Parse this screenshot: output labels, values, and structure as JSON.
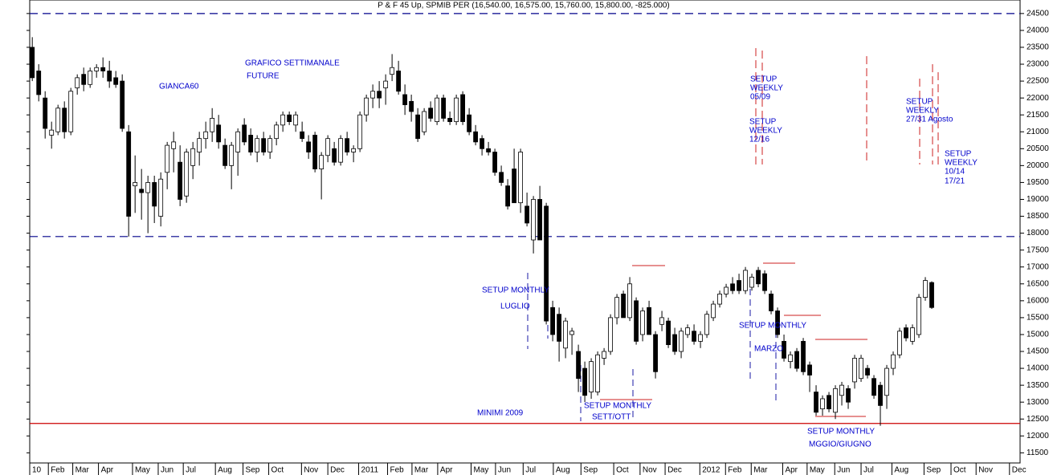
{
  "chart_data": {
    "type": "candlestick",
    "title": "P & F 45 Up, SPMIB PER (16,540.00, 16,575.00, 15,760.00, 15,800.00, -825.000)",
    "open": [
      23500,
      22800,
      22000,
      20900,
      21000,
      21700,
      21000,
      22300,
      22700,
      22400,
      22800,
      22900,
      22800,
      22600,
      22500,
      21000,
      19400,
      19300,
      19200,
      19500,
      18500,
      19800,
      20500,
      20100,
      19100,
      20000,
      20400,
      20800,
      21000,
      21200,
      20600,
      20000,
      20400,
      21200,
      20900,
      20400,
      20800,
      20400,
      20800,
      21200,
      21500,
      21200,
      21000,
      20700,
      20900,
      19900,
      20300,
      20500,
      20100,
      20800,
      20400,
      20500,
      21500,
      22000,
      22200,
      22300,
      22700,
      22800,
      22100,
      21900,
      21500,
      21000,
      21700,
      21300,
      22000,
      21400,
      21300,
      22100,
      21500,
      21000,
      20800,
      20500,
      20400,
      19800,
      19400,
      19900,
      18900,
      18800,
      17800,
      19000,
      18800,
      15800,
      15600,
      14600,
      15000,
      14500,
      14000,
      13300,
      13300,
      14300,
      14500,
      15500,
      16200,
      15500,
      16000,
      15000,
      15800,
      15000,
      15300,
      15400,
      15000,
      14500,
      15000,
      15100,
      14800,
      15000,
      15500,
      15900,
      16200,
      16500,
      16600,
      16300,
      16400,
      16900,
      16800,
      16200,
      15700,
      14800,
      14200,
      14500,
      14800,
      14100,
      13300,
      12800,
      13200,
      12700,
      13200,
      13400,
      13600,
      13700,
      14000,
      13700,
      13500,
      13200,
      14000,
      14400,
      15200,
      14800,
      15000,
      16100,
      16540
    ],
    "high": [
      23800,
      23000,
      22200,
      21300,
      21800,
      21900,
      22300,
      22700,
      22900,
      22900,
      23000,
      23200,
      23100,
      22800,
      22700,
      21200,
      20300,
      19900,
      19700,
      19700,
      19800,
      20700,
      21000,
      20600,
      20500,
      20700,
      21000,
      21300,
      21700,
      21500,
      20800,
      20700,
      21100,
      21400,
      21100,
      20900,
      21000,
      20900,
      21300,
      21600,
      21600,
      21600,
      21300,
      20900,
      21000,
      20400,
      20900,
      20700,
      20900,
      21000,
      20600,
      21600,
      22100,
      22400,
      22500,
      22700,
      23300,
      23100,
      22400,
      22100,
      21700,
      21700,
      21900,
      22100,
      22100,
      21600,
      22100,
      22200,
      21700,
      21200,
      20900,
      20700,
      20500,
      20000,
      19600,
      20500,
      20500,
      19200,
      19100,
      19400,
      18900,
      16000,
      15800,
      15500,
      15200,
      14700,
      14200,
      14300,
      14500,
      14600,
      15600,
      16200,
      16300,
      16700,
      16100,
      15800,
      16000,
      15100,
      15700,
      15500,
      15200,
      15200,
      15300,
      15300,
      15100,
      15700,
      16000,
      16300,
      16500,
      16700,
      16800,
      17000,
      16800,
      17000,
      16900,
      16300,
      15800,
      15000,
      14500,
      14600,
      14900,
      14200,
      13500,
      13200,
      13300,
      13500,
      13600,
      13500,
      14400,
      14400,
      14100,
      13800,
      13600,
      14100,
      14500,
      15200,
      15300,
      15300,
      16200,
      16700,
      16575
    ],
    "low": [
      22500,
      21900,
      20800,
      20500,
      20900,
      20800,
      20900,
      22100,
      22200,
      22300,
      22600,
      22600,
      22300,
      22300,
      21000,
      17900,
      18600,
      18400,
      18000,
      18300,
      18200,
      19300,
      19800,
      18800,
      18900,
      19600,
      20000,
      20500,
      20700,
      20500,
      19900,
      19300,
      19700,
      20600,
      20300,
      20100,
      20300,
      20200,
      20600,
      21000,
      21200,
      21000,
      20700,
      20200,
      19800,
      19000,
      20100,
      20000,
      20000,
      20300,
      20100,
      20400,
      21300,
      21700,
      21700,
      21800,
      22500,
      22100,
      21500,
      21300,
      20700,
      20900,
      21300,
      21200,
      21300,
      21200,
      21200,
      21200,
      20900,
      20600,
      20300,
      20300,
      19700,
      19400,
      18700,
      18900,
      18600,
      18200,
      17400,
      17800,
      15300,
      14800,
      14200,
      14300,
      14400,
      13300,
      13000,
      13100,
      13200,
      14100,
      14400,
      15300,
      15500,
      15400,
      14700,
      14800,
      15000,
      13700,
      15100,
      14600,
      14400,
      14300,
      14900,
      14700,
      14600,
      14900,
      15400,
      15800,
      16100,
      16200,
      16200,
      16200,
      16300,
      16400,
      16200,
      15600,
      14900,
      14200,
      14000,
      13900,
      13800,
      13300,
      12600,
      12600,
      12700,
      12500,
      12900,
      12800,
      13400,
      13600,
      13700,
      13100,
      12300,
      12800,
      13800,
      14300,
      14800,
      14700,
      14900,
      16000,
      15760
    ],
    "close": [
      22600,
      22100,
      21100,
      21050,
      21700,
      21000,
      22200,
      22600,
      22400,
      22800,
      22900,
      22800,
      22500,
      22400,
      21100,
      18500,
      19500,
      19200,
      19500,
      18800,
      19600,
      20600,
      20700,
      19000,
      20400,
      20500,
      20800,
      21000,
      21400,
      20700,
      20000,
      20600,
      21000,
      20700,
      20400,
      20800,
      20400,
      20800,
      21200,
      21500,
      21300,
      21500,
      20800,
      20400,
      19900,
      20300,
      20800,
      20100,
      20800,
      20400,
      20500,
      21500,
      22000,
      22200,
      22000,
      22500,
      22900,
      22200,
      21800,
      21600,
      20800,
      21600,
      21400,
      22000,
      21400,
      21300,
      22000,
      21300,
      21000,
      20700,
      20500,
      20400,
      19800,
      19500,
      18800,
      18900,
      20400,
      18300,
      19000,
      17800,
      15400,
      15000,
      14800,
      15400,
      15100,
      13700,
      13200,
      14200,
      14400,
      14500,
      15500,
      16100,
      15500,
      16500,
      14800,
      15700,
      15000,
      13900,
      15500,
      14700,
      14500,
      15100,
      15200,
      14800,
      15000,
      15600,
      15900,
      16200,
      16400,
      16300,
      16300,
      16900,
      16700,
      16500,
      16300,
      15700,
      15000,
      14300,
      14400,
      14000,
      13900,
      13800,
      12700,
      13100,
      12800,
      13400,
      13500,
      13000,
      14300,
      14300,
      13800,
      13200,
      12900,
      14000,
      14400,
      15100,
      14900,
      15200,
      16100,
      16600,
      15800
    ],
    "xlim": [
      -0.4,
      153.75
    ],
    "xticks": [
      {
        "value": -0.4,
        "label": "10"
      },
      {
        "value": 2.5,
        "label": "Feb"
      },
      {
        "value": 6.3,
        "label": "Mar"
      },
      {
        "value": 10.3,
        "label": "Apr"
      },
      {
        "value": 15.6,
        "label": "May"
      },
      {
        "value": 19.6,
        "label": "Jun"
      },
      {
        "value": 23.5,
        "label": "Jul"
      },
      {
        "value": 28.5,
        "label": "Aug"
      },
      {
        "value": 32.8,
        "label": "Sep"
      },
      {
        "value": 36.8,
        "label": "Oct"
      },
      {
        "value": 41.9,
        "label": "Nov"
      },
      {
        "value": 46,
        "label": "Dec"
      },
      {
        "value": 50.8,
        "label": "2011"
      },
      {
        "value": 55.3,
        "label": "Feb"
      },
      {
        "value": 59.1,
        "label": "Mar"
      },
      {
        "value": 63.1,
        "label": "Apr"
      },
      {
        "value": 68.3,
        "label": "May"
      },
      {
        "value": 72.1,
        "label": "Jun"
      },
      {
        "value": 76.4,
        "label": "Jul"
      },
      {
        "value": 81.1,
        "label": "Aug"
      },
      {
        "value": 85.4,
        "label": "Sep"
      },
      {
        "value": 90.5,
        "label": "Oct"
      },
      {
        "value": 94.6,
        "label": "Nov"
      },
      {
        "value": 98.5,
        "label": "Dec"
      },
      {
        "value": 103.9,
        "label": "2012"
      },
      {
        "value": 107.9,
        "label": "Feb"
      },
      {
        "value": 111.9,
        "label": "Mar"
      },
      {
        "value": 116.8,
        "label": "Apr"
      },
      {
        "value": 120.6,
        "label": "May"
      },
      {
        "value": 124.9,
        "label": "Jun"
      },
      {
        "value": 129,
        "label": "Jul"
      },
      {
        "value": 133.8,
        "label": "Aug"
      },
      {
        "value": 138.8,
        "label": "Sep"
      },
      {
        "value": 143,
        "label": "Oct"
      },
      {
        "value": 146.9,
        "label": "Nov"
      },
      {
        "value": 152.1,
        "label": "Dec"
      }
    ],
    "ylim": [
      11200,
      24900
    ],
    "yticks": [
      11500,
      12000,
      12500,
      13000,
      13500,
      14000,
      14500,
      15000,
      15500,
      16000,
      16500,
      17000,
      17500,
      18000,
      18500,
      19000,
      19500,
      20000,
      20500,
      21000,
      21500,
      22000,
      22500,
      23000,
      23500,
      24000,
      24500
    ],
    "levels": [
      {
        "value": 24500,
        "color": "#00008b",
        "dashed": true
      },
      {
        "value": 17900,
        "color": "#00008b",
        "dashed": true
      },
      {
        "value": 12370,
        "color": "#cc0000",
        "dashed": false
      }
    ],
    "annotations": [
      "GIANCA60",
      "GRAFICO SETTIMANALE",
      "FUTURE",
      "SETUP MONTHLY",
      "LUGLIO",
      "MINIMI 2009",
      "SETUP MONTHLY",
      "SETT/OTT",
      "SETUP MONTHLY",
      "MARZO",
      "SETUP MONTHLY",
      "MGGIO/GIUGNO",
      "SETUP",
      "WEEKLY",
      "05/09",
      "SETUP",
      "WEEKLY",
      "12/16",
      "SETUP",
      "WEEKLY",
      "27/31 Agosto",
      "SETUP",
      "WEEKLY",
      "10/14",
      "17/21"
    ]
  }
}
